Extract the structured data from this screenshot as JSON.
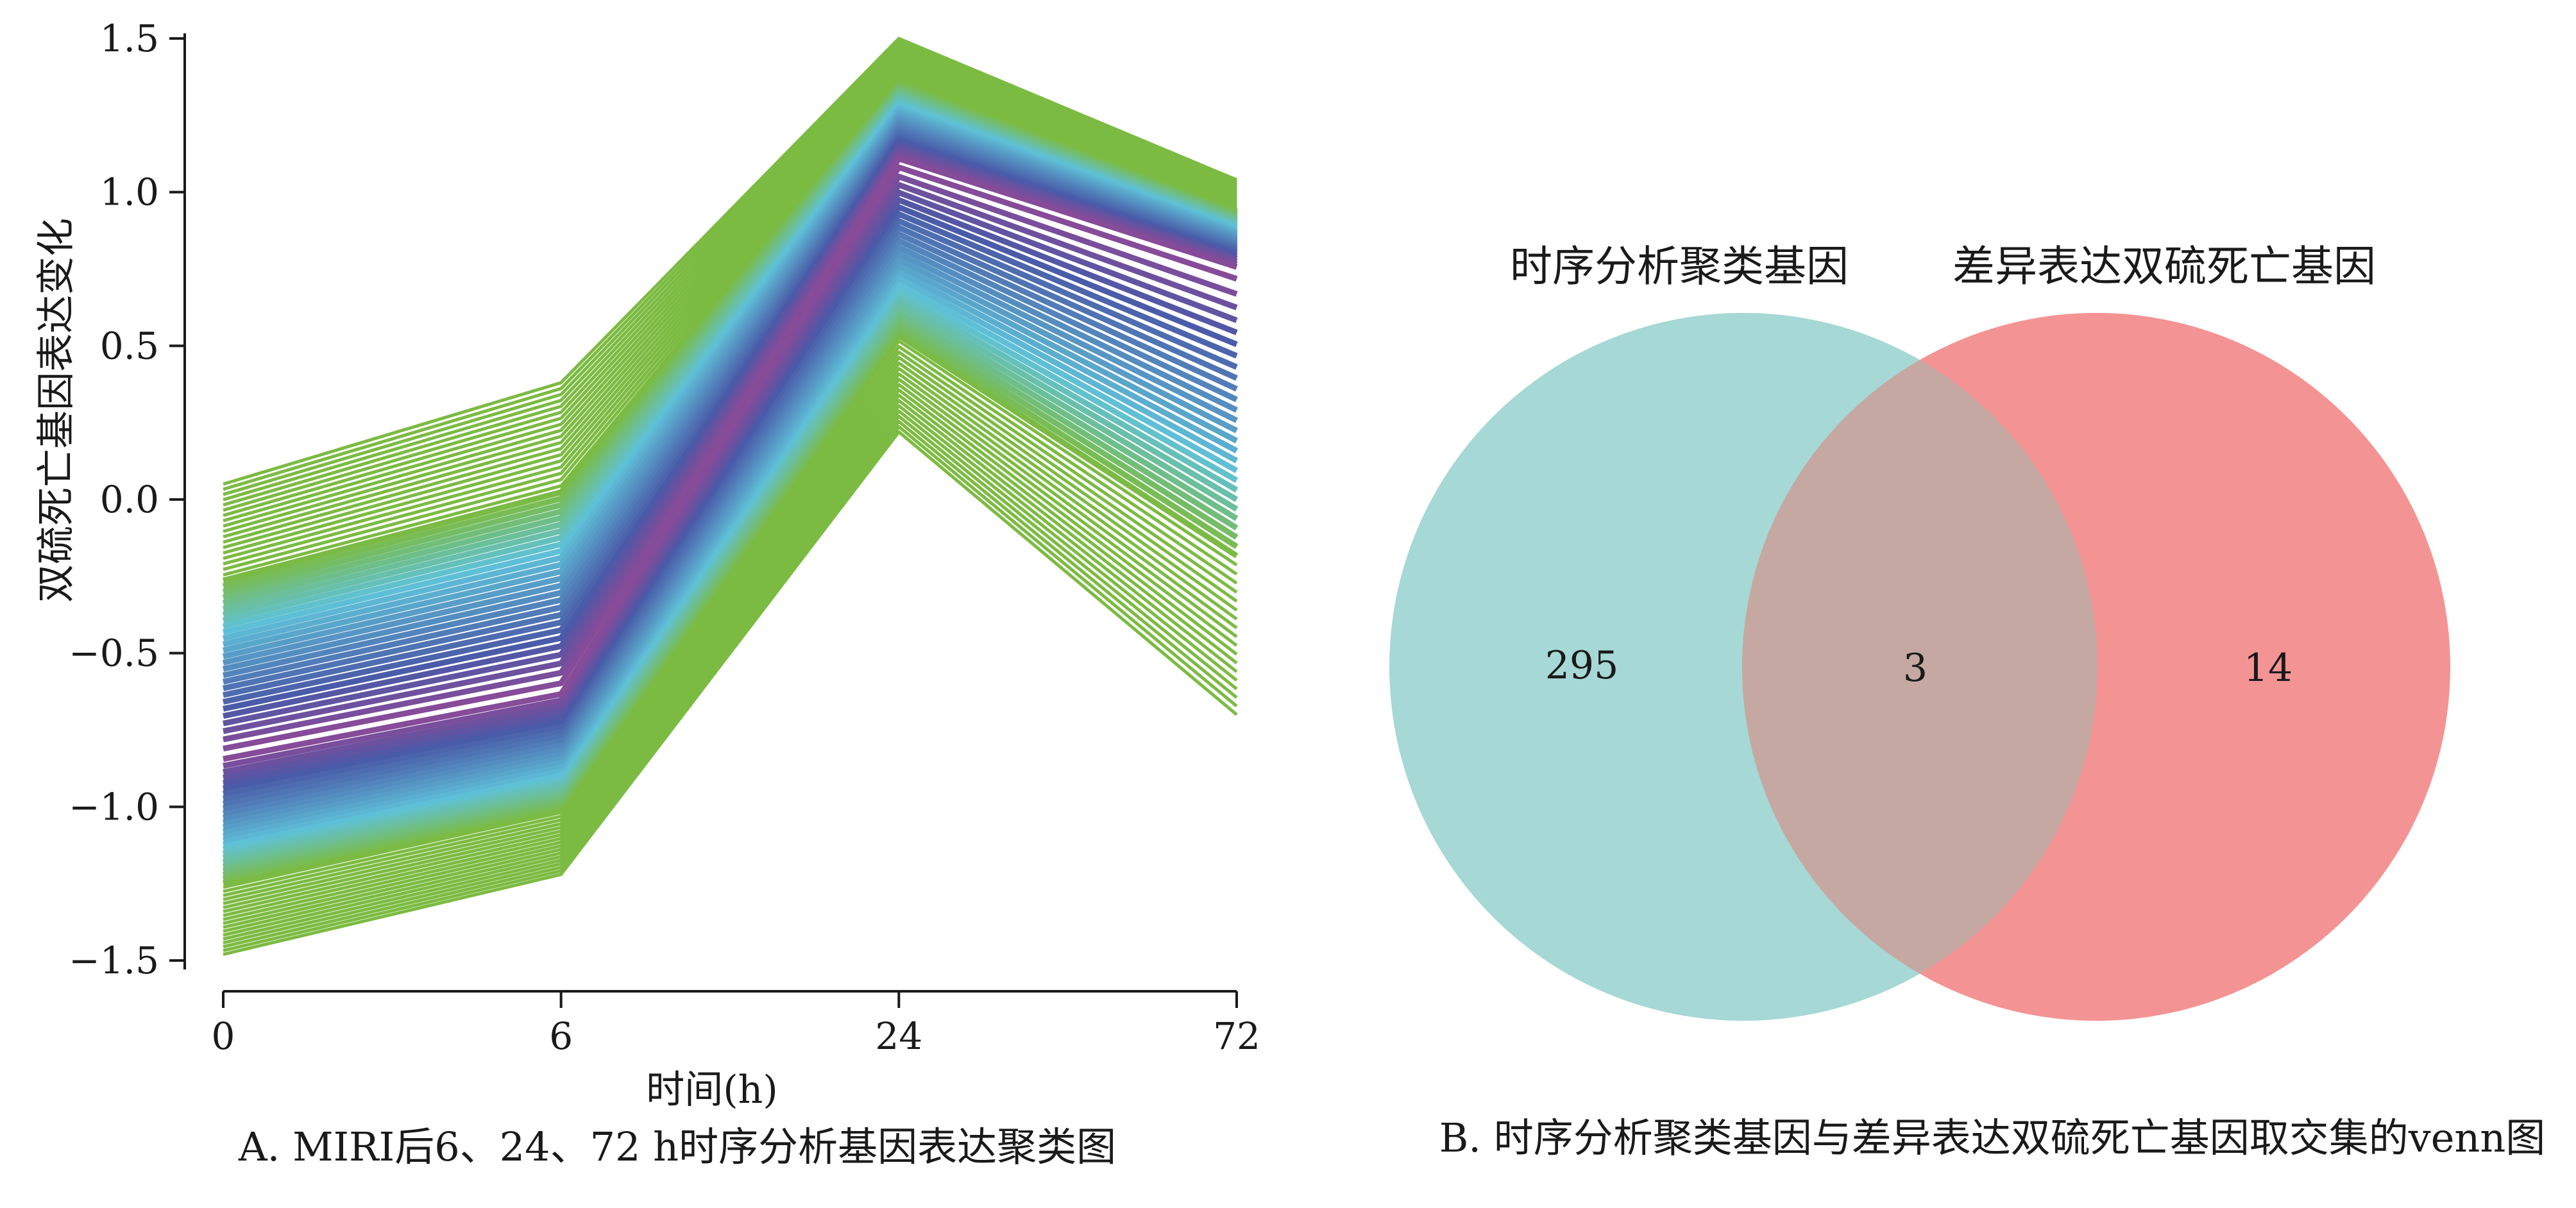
{
  "chart_data": [
    {
      "type": "line",
      "panel": "A",
      "caption": "A. MIRI后6、24、72 h时序分析基因表达聚类图",
      "xlabel": "时间(h)",
      "ylabel": "双硫死亡基因表达变化",
      "x_ticks": [
        "0",
        "6",
        "24",
        "72"
      ],
      "y_ticks": [
        "1.5",
        "1.0",
        "0.5",
        "0.0",
        "−0.5",
        "−1.0",
        "−1.5"
      ],
      "ylim": [
        -1.5,
        1.5
      ],
      "grid": false,
      "legend": "none",
      "line_count": "many overlaid gene profiles",
      "center_profile": [
        -0.83,
        -0.62,
        1.1,
        0.75
      ],
      "upper_envelope": [
        0.05,
        0.38,
        1.5,
        1.04
      ],
      "lower_envelope": [
        -1.48,
        -1.22,
        0.22,
        -0.7
      ],
      "colors": {
        "outer": "#7cbb42",
        "mid": "#5fc1d8",
        "inner": "#4a5aa8",
        "core": "#8c4a98"
      }
    },
    {
      "type": "venn",
      "panel": "B",
      "caption": "B. 时序分析聚类基因与差异表达双硫死亡基因取交集的venn图",
      "sets": [
        {
          "name": "时序分析聚类基因",
          "only": "295",
          "color": "#a6d8d5"
        },
        {
          "name": "差异表达双硫死亡基因",
          "only": "14",
          "color": "#f49393"
        }
      ],
      "intersection": "3",
      "intersection_color": "#c6a8a3"
    }
  ]
}
